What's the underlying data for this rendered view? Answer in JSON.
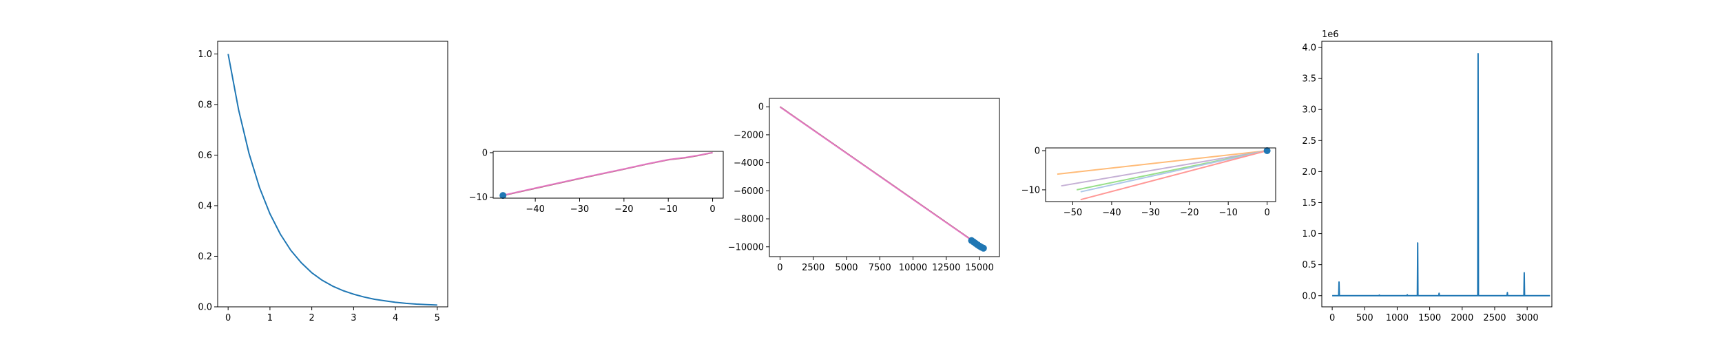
{
  "chart_data": [
    {
      "id": "panel1",
      "type": "line",
      "title": "",
      "xlabel": "",
      "ylabel": "",
      "xlim": [
        -0.25,
        5.25
      ],
      "ylim": [
        0.0,
        1.05
      ],
      "xticks": [
        0,
        1,
        2,
        3,
        4,
        5
      ],
      "xtick_labels": [
        "0",
        "1",
        "2",
        "3",
        "4",
        "5"
      ],
      "yticks": [
        0.0,
        0.2,
        0.4,
        0.6,
        0.8,
        1.0
      ],
      "ytick_labels": [
        "0.0",
        "0.2",
        "0.4",
        "0.6",
        "0.8",
        "1.0"
      ],
      "grid": false,
      "series": [
        {
          "color": "#1f77b4",
          "x": [
            0,
            0.25,
            0.5,
            0.75,
            1,
            1.25,
            1.5,
            1.75,
            2,
            2.25,
            2.5,
            2.75,
            3,
            3.25,
            3.5,
            3.75,
            4,
            4.25,
            4.5,
            4.75,
            5
          ],
          "y": [
            1.0,
            0.779,
            0.607,
            0.472,
            0.368,
            0.287,
            0.223,
            0.174,
            0.135,
            0.105,
            0.082,
            0.064,
            0.05,
            0.039,
            0.03,
            0.024,
            0.018,
            0.014,
            0.011,
            0.009,
            0.007
          ]
        }
      ]
    },
    {
      "id": "panel2",
      "type": "line",
      "title": "",
      "xlabel": "",
      "ylabel": "",
      "xlim": [
        -49.5,
        2.4
      ],
      "ylim": [
        -10.2,
        0.3
      ],
      "xticks": [
        -40,
        -30,
        -20,
        -10,
        0
      ],
      "xtick_labels": [
        "−40",
        "−30",
        "−20",
        "−10",
        "0"
      ],
      "yticks": [
        -10,
        0
      ],
      "ytick_labels": [
        "−10",
        "0"
      ],
      "grid": false,
      "series": [
        {
          "color": "#8c564b",
          "x": [
            -47.3,
            -40,
            -30,
            -20,
            -15,
            -10,
            -6,
            -3,
            -1,
            0
          ],
          "y": [
            -9.6,
            -8.0,
            -5.8,
            -3.7,
            -2.6,
            -1.6,
            -1.1,
            -0.6,
            -0.2,
            0
          ]
        },
        {
          "color": "#e377c2",
          "x": [
            -47.3,
            -40,
            -30,
            -20,
            -15,
            -10,
            -6,
            -3,
            -1,
            0
          ],
          "y": [
            -9.55,
            -7.95,
            -5.75,
            -3.65,
            -2.55,
            -1.55,
            -1.05,
            -0.55,
            -0.15,
            0
          ]
        }
      ],
      "markers": [
        {
          "color": "#1f77b4",
          "x": -47.3,
          "y": -9.6
        }
      ]
    },
    {
      "id": "panel3",
      "type": "line",
      "title": "",
      "xlabel": "",
      "ylabel": "",
      "xlim": [
        -800,
        16500
      ],
      "ylim": [
        -10700,
        600
      ],
      "xticks": [
        0,
        2500,
        5000,
        7500,
        10000,
        12500,
        15000
      ],
      "xtick_labels": [
        "0",
        "2500",
        "5000",
        "7500",
        "10000",
        "12500",
        "15000"
      ],
      "yticks": [
        -10000,
        -8000,
        -6000,
        -4000,
        -2000,
        0
      ],
      "ytick_labels": [
        "−10000",
        "−8000",
        "−6000",
        "−4000",
        "−2000",
        "0"
      ],
      "grid": false,
      "series": [
        {
          "color": "#8c564b",
          "x": [
            0,
            15300
          ],
          "y": [
            0,
            -10100
          ]
        },
        {
          "color": "#e377c2",
          "x": [
            0,
            15300
          ],
          "y": [
            -20,
            -10120
          ]
        }
      ],
      "markers": [
        {
          "color": "#1f77b4",
          "x": 14400,
          "y": -9550
        },
        {
          "color": "#1f77b4",
          "x": 14550,
          "y": -9650
        },
        {
          "color": "#1f77b4",
          "x": 14700,
          "y": -9750
        },
        {
          "color": "#1f77b4",
          "x": 14850,
          "y": -9850
        },
        {
          "color": "#1f77b4",
          "x": 15000,
          "y": -9950
        },
        {
          "color": "#1f77b4",
          "x": 15150,
          "y": -10030
        },
        {
          "color": "#1f77b4",
          "x": 15300,
          "y": -10100
        }
      ]
    },
    {
      "id": "panel4",
      "type": "line",
      "title": "",
      "xlabel": "",
      "ylabel": "",
      "xlim": [
        -57,
        2.2
      ],
      "ylim": [
        -13,
        0.7
      ],
      "xticks": [
        -50,
        -40,
        -30,
        -20,
        -10,
        0
      ],
      "xtick_labels": [
        "−50",
        "−40",
        "−30",
        "−20",
        "−10",
        "0"
      ],
      "yticks": [
        -10,
        0
      ],
      "ytick_labels": [
        "−10",
        "0"
      ],
      "grid": false,
      "series": [
        {
          "color": "#ffbb78",
          "x": [
            -54,
            0
          ],
          "y": [
            -6,
            0
          ]
        },
        {
          "color": "#c5b0d5",
          "x": [
            -53,
            0
          ],
          "y": [
            -9,
            0
          ]
        },
        {
          "color": "#98df8a",
          "x": [
            -49,
            0
          ],
          "y": [
            -10,
            0
          ]
        },
        {
          "color": "#aec7e8",
          "x": [
            -48,
            0
          ],
          "y": [
            -10.5,
            0
          ]
        },
        {
          "color": "#ff9896",
          "x": [
            -48,
            0
          ],
          "y": [
            -12.5,
            0
          ]
        }
      ],
      "markers": [
        {
          "color": "#1f77b4",
          "x": 0,
          "y": 0
        }
      ]
    },
    {
      "id": "panel5",
      "type": "line",
      "title": "",
      "xlabel": "",
      "ylabel": "",
      "offset_text": "1e6",
      "xlim": [
        -160,
        3380
      ],
      "ylim": [
        -180000,
        4100000
      ],
      "xticks": [
        0,
        500,
        1000,
        1500,
        2000,
        2500,
        3000
      ],
      "xtick_labels": [
        "0",
        "500",
        "1000",
        "1500",
        "2000",
        "2500",
        "3000"
      ],
      "yticks": [
        0,
        500000,
        1000000,
        1500000,
        2000000,
        2500000,
        3000000,
        3500000,
        4000000
      ],
      "ytick_labels": [
        "0.0",
        "0.5",
        "1.0",
        "1.5",
        "2.0",
        "2.5",
        "3.0",
        "3.5",
        "4.0"
      ],
      "grid": false,
      "series": [
        {
          "color": "#1f77b4",
          "x": [
            0,
            100,
            105,
            110,
            720,
            725,
            730,
            1150,
            1155,
            1160,
            1310,
            1315,
            1320,
            1640,
            1645,
            1650,
            2240,
            2245,
            2250,
            2690,
            2695,
            2700,
            2950,
            2955,
            2960,
            3350
          ],
          "y": [
            0,
            0,
            220000,
            0,
            0,
            10000,
            0,
            0,
            15000,
            0,
            0,
            850000,
            0,
            0,
            40000,
            0,
            0,
            3900000,
            0,
            0,
            50000,
            0,
            0,
            370000,
            0,
            0
          ]
        }
      ]
    }
  ]
}
